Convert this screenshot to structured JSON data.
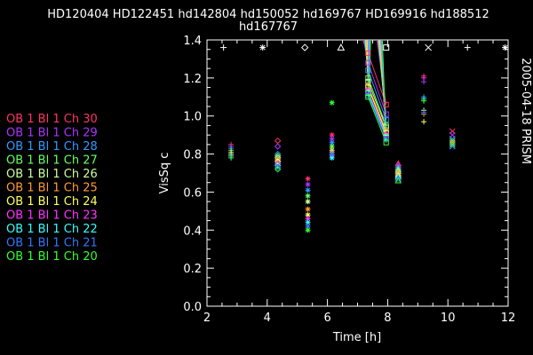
{
  "title_line1": "HD120404 HD122451 hd142804 hd150052 hd169767 HD169916 hd188512",
  "title_line2": "hd167767",
  "side_label": "2005-04-18 PRISM",
  "legend": [
    {
      "label": "OB  1  Bl  1  Ch  30",
      "color": "#ff3366"
    },
    {
      "label": "OB  1  Bl  1  Ch  29",
      "color": "#aa33ff"
    },
    {
      "label": "OB  1  Bl  1  Ch  28",
      "color": "#3399ff"
    },
    {
      "label": "OB  1  Bl  1  Ch  27",
      "color": "#66ff66"
    },
    {
      "label": "OB  1  Bl  1  Ch  26",
      "color": "#ccff99"
    },
    {
      "label": "OB  1  Bl  1  Ch  25",
      "color": "#ff9933"
    },
    {
      "label": "OB  1  Bl  1  Ch  24",
      "color": "#ffff66"
    },
    {
      "label": "OB  1  Bl  1  Ch  23",
      "color": "#ff33ff"
    },
    {
      "label": "OB  1  Bl  1  Ch  22",
      "color": "#33ffff"
    },
    {
      "label": "OB  1  Bl  1  Ch  21",
      "color": "#3377ff"
    },
    {
      "label": "OB  1  Bl  1  Ch  20",
      "color": "#33ff33"
    }
  ],
  "chart_data": {
    "type": "scatter",
    "xlabel": "Time [h]",
    "ylabel": "VisSq c",
    "xlim": [
      2,
      12
    ],
    "ylim": [
      0.0,
      1.4
    ],
    "xticks": [
      2,
      4,
      6,
      8,
      10,
      12
    ],
    "yticks": [
      0.0,
      0.2,
      0.4,
      0.6,
      0.8,
      1.0,
      1.2,
      1.4
    ],
    "grid": false,
    "top_markers": [
      {
        "x": 2.55,
        "symbol": "+"
      },
      {
        "x": 3.85,
        "symbol": "*"
      },
      {
        "x": 5.25,
        "symbol": "◇"
      },
      {
        "x": 6.45,
        "symbol": "△"
      },
      {
        "x": 7.95,
        "symbol": "□"
      },
      {
        "x": 9.35,
        "symbol": "×"
      },
      {
        "x": 10.65,
        "symbol": "+"
      },
      {
        "x": 11.9,
        "symbol": "*"
      }
    ],
    "groups": [
      {
        "x": 2.8,
        "symbol": "+",
        "values": [
          0.85,
          0.84,
          0.83,
          0.82,
          0.81,
          0.8,
          0.8,
          0.79,
          0.79,
          0.78,
          0.78
        ]
      },
      {
        "x": 4.35,
        "symbol": "◇",
        "values": [
          0.87,
          0.84,
          0.8,
          0.79,
          0.78,
          0.77,
          0.76,
          0.75,
          0.74,
          0.73,
          0.72
        ]
      },
      {
        "x": 5.35,
        "symbol": "*",
        "values": [
          0.67,
          0.64,
          0.61,
          0.58,
          0.55,
          0.51,
          0.48,
          0.46,
          0.44,
          0.42,
          0.4
        ]
      },
      {
        "x": 6.15,
        "symbol": "*",
        "values": [
          0.9,
          0.88,
          0.86,
          0.84,
          0.82,
          0.81,
          0.8,
          0.79,
          0.78,
          0.8,
          1.07
        ]
      },
      {
        "x": 7.35,
        "symbol": "□",
        "values": [
          1.33,
          1.28,
          1.24,
          1.2,
          1.18,
          1.16,
          1.15,
          1.13,
          1.12,
          1.11,
          1.1
        ]
      },
      {
        "x": 7.95,
        "symbol": "□",
        "values": [
          1.06,
          1.01,
          0.98,
          0.95,
          0.94,
          0.92,
          0.91,
          0.9,
          0.89,
          0.88,
          0.86
        ]
      },
      {
        "x": 8.35,
        "symbol": "△",
        "values": [
          0.75,
          0.74,
          0.73,
          0.72,
          0.71,
          0.7,
          0.69,
          0.68,
          0.68,
          0.67,
          0.66
        ]
      },
      {
        "x": 9.2,
        "symbol": "+",
        "values": [
          1.21,
          1.18,
          1.1,
          1.08,
          1.03,
          1.01,
          0.97,
          1.2,
          1.09,
          1.02,
          1.08
        ]
      },
      {
        "x": 10.15,
        "symbol": "×",
        "values": [
          0.92,
          0.9,
          0.88,
          0.87,
          0.86,
          0.86,
          0.85,
          0.85,
          0.84,
          0.84,
          0.85
        ]
      }
    ]
  }
}
